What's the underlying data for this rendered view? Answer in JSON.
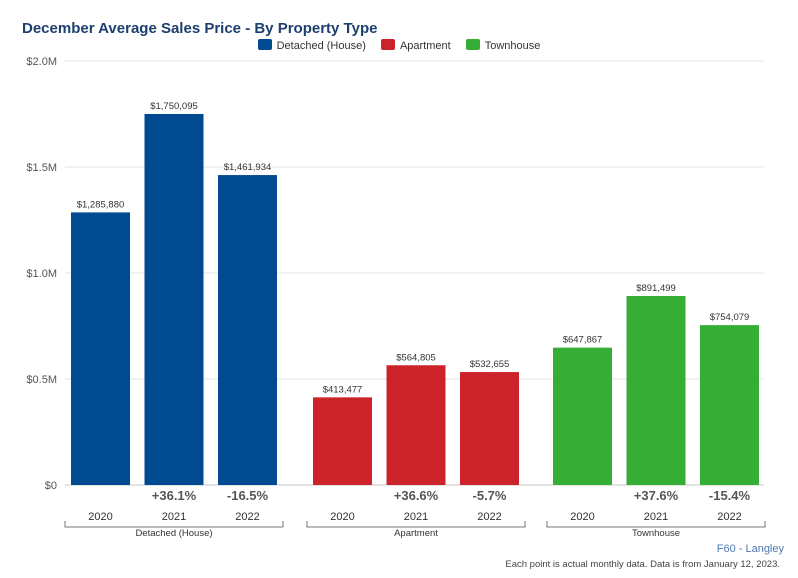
{
  "chart_data": {
    "type": "bar",
    "title": "December Average Sales Price - By Property Type",
    "yticks": [
      "$0",
      "$0.5M",
      "$1.0M",
      "$1.5M",
      "$2.0M"
    ],
    "ylim": [
      0,
      2000000
    ],
    "grid": true,
    "legend_position": "top",
    "groups": [
      {
        "name": "Detached (House)",
        "color": "#004a8f",
        "years": [
          "2020",
          "2021",
          "2022"
        ],
        "values": [
          1285880,
          1750095,
          1461934
        ],
        "value_labels": [
          "$1,285,880",
          "$1,750,095",
          "$1,461,934"
        ],
        "changes": [
          "",
          "+36.1%",
          "-16.5%"
        ]
      },
      {
        "name": "Apartment",
        "color": "#cc2229",
        "years": [
          "2020",
          "2021",
          "2022"
        ],
        "values": [
          413477,
          564805,
          532655
        ],
        "value_labels": [
          "$413,477",
          "$564,805",
          "$532,655"
        ],
        "changes": [
          "",
          "+36.6%",
          "-5.7%"
        ]
      },
      {
        "name": "Townhouse",
        "color": "#36ad35",
        "years": [
          "2020",
          "2021",
          "2022"
        ],
        "values": [
          647867,
          891499,
          754079
        ],
        "value_labels": [
          "$647,867",
          "$891,499",
          "$754,079"
        ],
        "changes": [
          "",
          "+37.6%",
          "-15.4%"
        ]
      }
    ]
  },
  "footer": {
    "code": "F60 - Langley",
    "note": "Each point is actual monthly data. Data is from January 12, 2023."
  }
}
